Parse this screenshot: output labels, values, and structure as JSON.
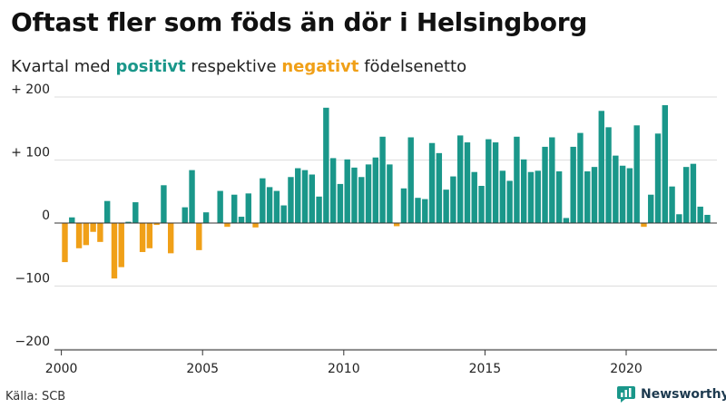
{
  "title": "Oftast fler som föds än dör i Helsingborg",
  "subtitle": {
    "before": "Kvartal med ",
    "positive": "positivt",
    "middle": " respektive ",
    "negative": "negativt",
    "after": " födelsenetto"
  },
  "source": "Källa: SCB",
  "brand": "Newsworthy",
  "colors": {
    "positive": "#1a978a",
    "negative": "#f0a018",
    "brand_icon": "#1a978a"
  },
  "chart_data": {
    "type": "bar",
    "title": "Oftast fler som föds än dör i Helsingborg",
    "subtitle": "Kvartal med positivt respektive negativt födelsenetto",
    "x_start": {
      "year": 2000,
      "quarter": 1
    },
    "x_tick_labels": [
      "2000",
      "2005",
      "2010",
      "2015",
      "2020"
    ],
    "y_tick_values": [
      200,
      100,
      0,
      -100,
      -200
    ],
    "y_tick_labels": [
      "+ 200",
      "+ 100",
      "0",
      "−100",
      "−200"
    ],
    "ylim": [
      -200,
      200
    ],
    "grid": true,
    "values": [
      -62,
      9,
      -40,
      -35,
      -14,
      -30,
      35,
      -88,
      -70,
      2,
      33,
      -46,
      -40,
      -3,
      60,
      -48,
      0,
      25,
      84,
      -43,
      17,
      0,
      51,
      -6,
      45,
      10,
      47,
      -7,
      71,
      57,
      51,
      28,
      73,
      87,
      84,
      77,
      42,
      183,
      103,
      62,
      101,
      88,
      73,
      93,
      104,
      137,
      93,
      -5,
      55,
      136,
      40,
      38,
      127,
      111,
      53,
      74,
      139,
      128,
      81,
      59,
      133,
      128,
      83,
      67,
      137,
      101,
      81,
      83,
      121,
      136,
      82,
      8,
      121,
      143,
      82,
      89,
      178,
      152,
      107,
      91,
      87,
      155,
      -6,
      45,
      142,
      187,
      58,
      14,
      89,
      94,
      26,
      13
    ]
  }
}
